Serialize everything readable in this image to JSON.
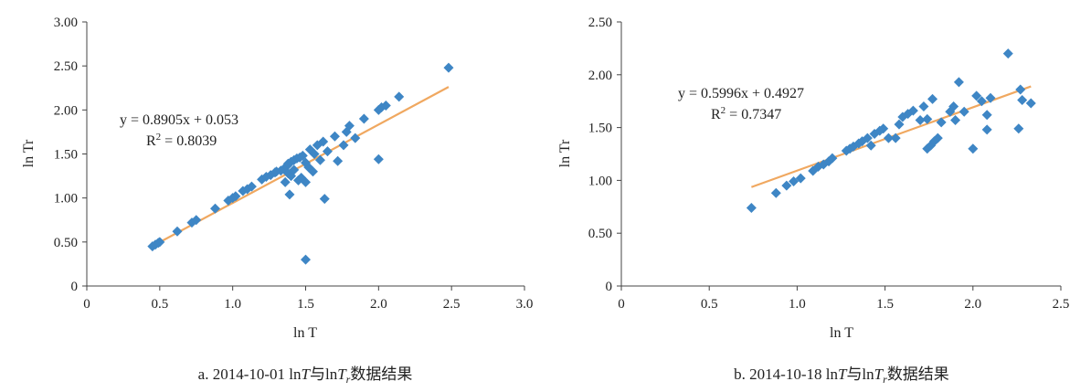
{
  "chart_data": [
    {
      "type": "scatter",
      "caption_prefix": "a. 2014-10-01 ln",
      "caption_T": "T",
      "caption_mid": "与ln",
      "caption_T2": "T",
      "caption_sub": "r",
      "caption_suffix": "数据结果",
      "xlabel": "ln T",
      "ylabel": "ln Tr",
      "xlim": [
        0,
        3.0
      ],
      "ylim": [
        0,
        3.0
      ],
      "xticks": [
        "0",
        "0.5",
        "1.0",
        "1.5",
        "2.0",
        "2.5",
        "3.0"
      ],
      "yticks": [
        "0",
        "0.50",
        "1.00",
        "1.50",
        "2.00",
        "2.50",
        "3.00"
      ],
      "equation": "y = 0.8905x + 0.053",
      "r2_label": "R",
      "r2_value": " = 0.8039",
      "trend": {
        "slope": 0.8905,
        "intercept": 0.053,
        "x_range": [
          0.44,
          2.48
        ]
      },
      "grid": false,
      "legend": "none",
      "colors": {
        "points": "#3e86c5",
        "trend": "#f0a860"
      },
      "points": [
        [
          0.45,
          0.45
        ],
        [
          0.47,
          0.47
        ],
        [
          0.49,
          0.49
        ],
        [
          0.5,
          0.5
        ],
        [
          0.62,
          0.62
        ],
        [
          0.72,
          0.72
        ],
        [
          0.75,
          0.75
        ],
        [
          0.88,
          0.88
        ],
        [
          0.97,
          0.97
        ],
        [
          1.0,
          1.0
        ],
        [
          1.02,
          1.02
        ],
        [
          1.07,
          1.08
        ],
        [
          1.1,
          1.1
        ],
        [
          1.13,
          1.13
        ],
        [
          1.2,
          1.21
        ],
        [
          1.23,
          1.24
        ],
        [
          1.26,
          1.26
        ],
        [
          1.29,
          1.29
        ],
        [
          1.3,
          1.3
        ],
        [
          1.33,
          1.31
        ],
        [
          1.35,
          1.33
        ],
        [
          1.37,
          1.36
        ],
        [
          1.38,
          1.39
        ],
        [
          1.4,
          1.41
        ],
        [
          1.42,
          1.43
        ],
        [
          1.44,
          1.45
        ],
        [
          1.46,
          1.46
        ],
        [
          1.48,
          1.48
        ],
        [
          1.36,
          1.18
        ],
        [
          1.38,
          1.28
        ],
        [
          1.4,
          1.25
        ],
        [
          1.42,
          1.32
        ],
        [
          1.45,
          1.2
        ],
        [
          1.47,
          1.23
        ],
        [
          1.5,
          1.18
        ],
        [
          1.5,
          1.4
        ],
        [
          1.52,
          1.35
        ],
        [
          1.55,
          1.3
        ],
        [
          1.53,
          1.55
        ],
        [
          1.56,
          1.5
        ],
        [
          1.58,
          1.6
        ],
        [
          1.6,
          1.43
        ],
        [
          1.62,
          1.64
        ],
        [
          1.65,
          1.53
        ],
        [
          1.7,
          1.7
        ],
        [
          1.72,
          1.42
        ],
        [
          1.76,
          1.6
        ],
        [
          1.78,
          1.75
        ],
        [
          1.8,
          1.82
        ],
        [
          1.84,
          1.68
        ],
        [
          1.9,
          1.9
        ],
        [
          2.0,
          2.0
        ],
        [
          2.02,
          2.03
        ],
        [
          2.05,
          2.05
        ],
        [
          2.14,
          2.15
        ],
        [
          2.48,
          2.48
        ],
        [
          2.0,
          1.44
        ],
        [
          1.39,
          1.04
        ],
        [
          1.63,
          0.99
        ],
        [
          1.5,
          0.3
        ]
      ]
    },
    {
      "type": "scatter",
      "caption_prefix": "b. 2014-10-18 ln",
      "caption_T": "T",
      "caption_mid": "与ln",
      "caption_T2": "T",
      "caption_sub": "r",
      "caption_suffix": "数据结果",
      "xlabel": "ln T",
      "ylabel": "ln Tr",
      "xlim": [
        0,
        2.5
      ],
      "ylim": [
        0,
        2.5
      ],
      "xticks": [
        "0",
        "0.5",
        "1.0",
        "1.5",
        "2.0",
        "2.5"
      ],
      "yticks": [
        "0",
        "0.50",
        "1.00",
        "1.50",
        "2.00",
        "2.50"
      ],
      "equation": "y = 0.5996x + 0.4927",
      "r2_label": "R",
      "r2_value": " = 0.7347",
      "trend": {
        "slope": 0.5996,
        "intercept": 0.4927,
        "x_range": [
          0.74,
          2.33
        ]
      },
      "grid": false,
      "legend": "none",
      "colors": {
        "points": "#3e86c5",
        "trend": "#f0a860"
      },
      "points": [
        [
          0.74,
          0.74
        ],
        [
          0.88,
          0.88
        ],
        [
          0.94,
          0.95
        ],
        [
          0.98,
          0.99
        ],
        [
          1.02,
          1.02
        ],
        [
          1.09,
          1.09
        ],
        [
          1.12,
          1.13
        ],
        [
          1.15,
          1.15
        ],
        [
          1.18,
          1.18
        ],
        [
          1.2,
          1.21
        ],
        [
          1.28,
          1.28
        ],
        [
          1.3,
          1.3
        ],
        [
          1.32,
          1.32
        ],
        [
          1.35,
          1.35
        ],
        [
          1.37,
          1.37
        ],
        [
          1.4,
          1.4
        ],
        [
          1.42,
          1.33
        ],
        [
          1.44,
          1.44
        ],
        [
          1.47,
          1.47
        ],
        [
          1.49,
          1.49
        ],
        [
          1.52,
          1.4
        ],
        [
          1.56,
          1.4
        ],
        [
          1.58,
          1.53
        ],
        [
          1.6,
          1.6
        ],
        [
          1.63,
          1.63
        ],
        [
          1.66,
          1.66
        ],
        [
          1.7,
          1.57
        ],
        [
          1.72,
          1.7
        ],
        [
          1.74,
          1.58
        ],
        [
          1.74,
          1.3
        ],
        [
          1.76,
          1.33
        ],
        [
          1.77,
          1.77
        ],
        [
          1.78,
          1.37
        ],
        [
          1.8,
          1.4
        ],
        [
          1.82,
          1.55
        ],
        [
          1.87,
          1.65
        ],
        [
          1.89,
          1.7
        ],
        [
          1.9,
          1.57
        ],
        [
          1.92,
          1.93
        ],
        [
          1.95,
          1.65
        ],
        [
          2.0,
          1.3
        ],
        [
          2.02,
          1.8
        ],
        [
          2.05,
          1.75
        ],
        [
          2.08,
          1.62
        ],
        [
          2.08,
          1.48
        ],
        [
          2.1,
          1.78
        ],
        [
          2.2,
          2.2
        ],
        [
          2.27,
          1.86
        ],
        [
          2.28,
          1.76
        ],
        [
          2.26,
          1.49
        ],
        [
          2.33,
          1.73
        ]
      ]
    }
  ]
}
